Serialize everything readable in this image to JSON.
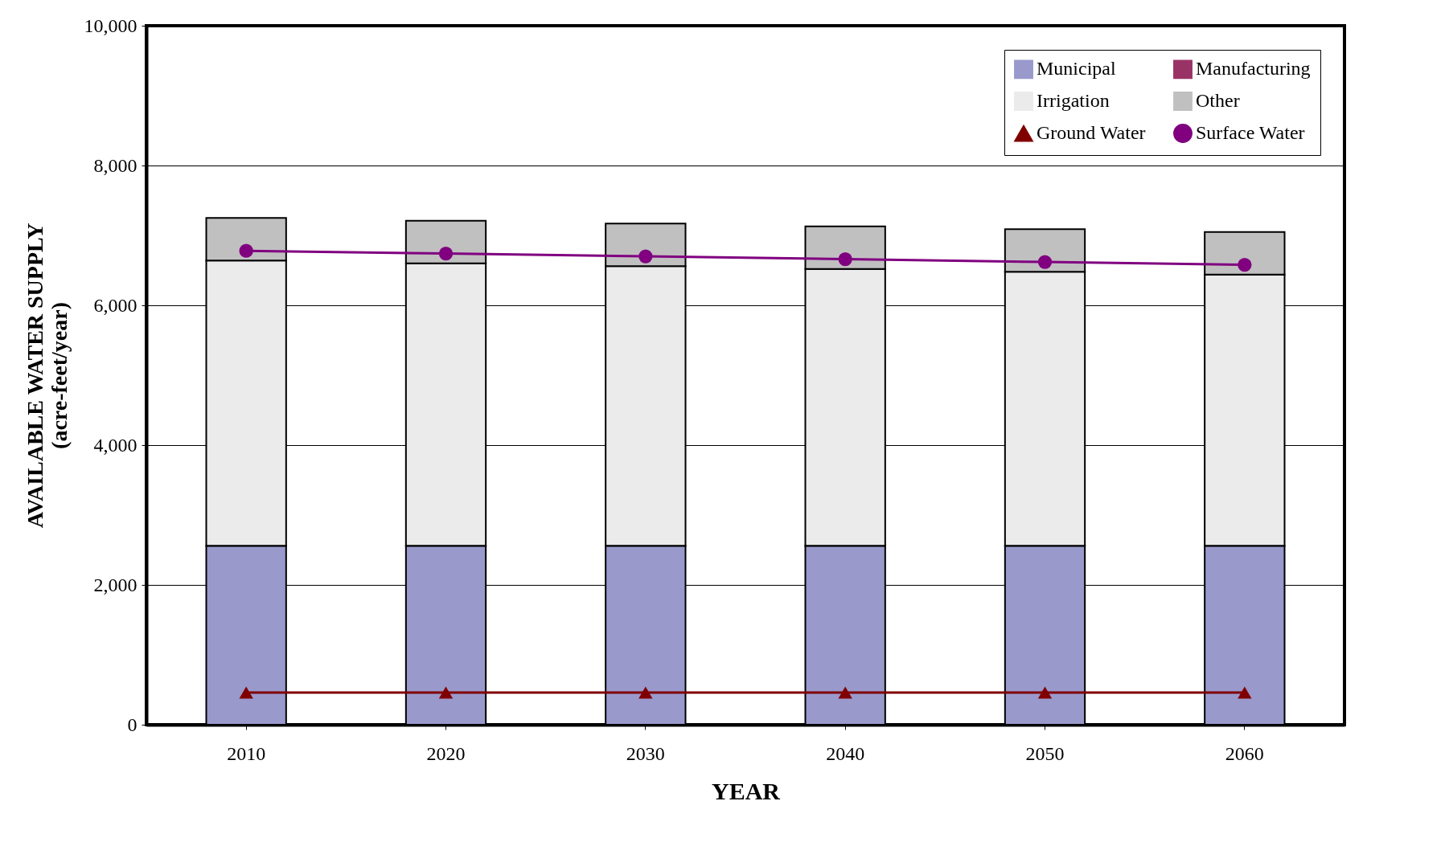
{
  "chart_data": {
    "type": "bar",
    "stacked": true,
    "xlabel": "YEAR",
    "ylabel": "AVAILABLE WATER  SUPPLY\n(acre-feet/year)",
    "categories": [
      "2010",
      "2020",
      "2030",
      "2040",
      "2050",
      "2060"
    ],
    "series": [
      {
        "name": "Municipal",
        "color": "#9999cc",
        "values": [
          2560,
          2560,
          2560,
          2560,
          2560,
          2560
        ]
      },
      {
        "name": "Manufacturing",
        "color": "#993366",
        "values": [
          0,
          0,
          0,
          0,
          0,
          0
        ]
      },
      {
        "name": "Irrigation",
        "color": "#ebebeb",
        "values": [
          4080,
          4040,
          4000,
          3960,
          3920,
          3880
        ]
      },
      {
        "name": "Other",
        "color": "#c0c0c0",
        "values": [
          610,
          610,
          610,
          610,
          610,
          610
        ]
      },
      {
        "name": "Ground Water",
        "type": "line",
        "marker": "triangle",
        "color": "#800000",
        "values": [
          460,
          460,
          460,
          460,
          460,
          460
        ]
      },
      {
        "name": "Surface Water",
        "type": "line",
        "marker": "circle",
        "color": "#800080",
        "values": [
          6780,
          6740,
          6700,
          6660,
          6620,
          6580
        ]
      }
    ],
    "ylim": [
      0,
      10000
    ],
    "yticks": [
      0,
      {
        "value": 2000,
        "label": "2,000"
      },
      {
        "value": 4000,
        "label": "4,000"
      },
      {
        "value": 6000,
        "label": "6,000"
      },
      {
        "value": 8000,
        "label": "8,000"
      },
      {
        "value": 10000,
        "label": "10,000"
      }
    ],
    "grid": "y",
    "legend": "top right"
  }
}
